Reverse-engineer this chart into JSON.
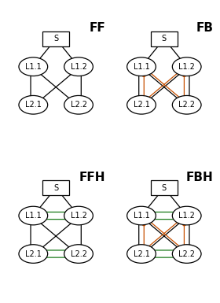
{
  "title_FF": "FF",
  "title_FB": "FB",
  "title_FFH": "FFH",
  "title_FBH": "FBH",
  "bg_color": "#ffffff",
  "node_color": "#ffffff",
  "node_edge_color": "#000000",
  "arrow_black": "#000000",
  "arrow_orange": "#c85000",
  "arrow_green": "#1a7a1a",
  "title_fontsize": 11,
  "label_fontsize": 7.0
}
